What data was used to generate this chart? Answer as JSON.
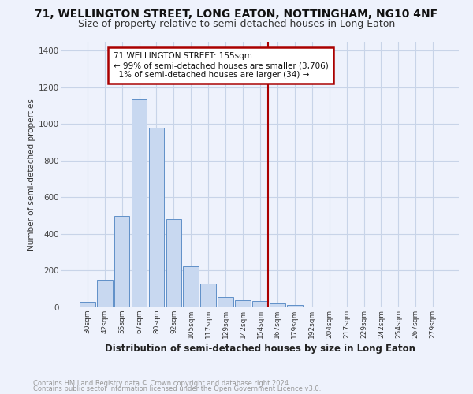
{
  "title1": "71, WELLINGTON STREET, LONG EATON, NOTTINGHAM, NG10 4NF",
  "title2": "Size of property relative to semi-detached houses in Long Eaton",
  "xlabel": "Distribution of semi-detached houses by size in Long Eaton",
  "ylabel": "Number of semi-detached properties",
  "footnote1": "Contains HM Land Registry data © Crown copyright and database right 2024.",
  "footnote2": "Contains public sector information licensed under the Open Government Licence v3.0.",
  "bar_color": "#c8d8f0",
  "bar_edge_color": "#6090c8",
  "annotation_text": "71 WELLINGTON STREET: 155sqm\n← 99% of semi-detached houses are smaller (3,706)\n  1% of semi-detached houses are larger (34) →",
  "vline_color": "#aa0000",
  "categories": [
    "30sqm",
    "42sqm",
    "55sqm",
    "67sqm",
    "80sqm",
    "92sqm",
    "105sqm",
    "117sqm",
    "129sqm",
    "142sqm",
    "154sqm",
    "167sqm",
    "179sqm",
    "192sqm",
    "204sqm",
    "217sqm",
    "229sqm",
    "242sqm",
    "254sqm",
    "267sqm",
    "279sqm"
  ],
  "values": [
    30,
    150,
    500,
    1135,
    980,
    480,
    225,
    128,
    58,
    38,
    35,
    20,
    13,
    5,
    0,
    0,
    0,
    0,
    0,
    0,
    0
  ],
  "ylim": [
    0,
    1450
  ],
  "yticks": [
    0,
    200,
    400,
    600,
    800,
    1000,
    1200,
    1400
  ],
  "grid_color": "#c8d4e8",
  "background_color": "#eef2fc",
  "title_fontsize": 10,
  "subtitle_fontsize": 9
}
